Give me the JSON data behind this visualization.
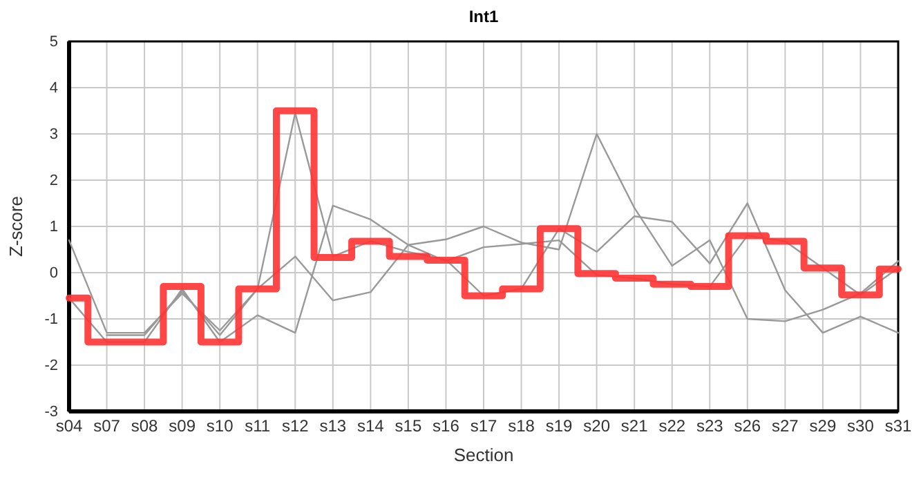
{
  "chart_data": {
    "type": "line",
    "title": "Int1",
    "xlabel": "Section",
    "ylabel": "Z-score",
    "categories": [
      "s04",
      "s07",
      "s08",
      "s09",
      "s10",
      "s11",
      "s12",
      "s13",
      "s14",
      "s15",
      "s16",
      "s17",
      "s18",
      "s19",
      "s20",
      "s21",
      "s22",
      "s23",
      "s26",
      "s27",
      "s29",
      "s30",
      "s31"
    ],
    "ylim": [
      -3,
      5
    ],
    "yticks": [
      -3,
      -2,
      -1,
      0,
      1,
      2,
      3,
      4,
      5
    ],
    "grid": true,
    "marker": "none",
    "line_style": "solid",
    "series": [
      {
        "color": "#999999",
        "values": [
          0.7,
          -1.3,
          -1.3,
          -0.45,
          -1.25,
          -0.35,
          3.45,
          0.35,
          0.68,
          0.45,
          0.28,
          -0.5,
          -0.35,
          0.95,
          0.45,
          1.22,
          1.1,
          0.2,
          1.5,
          -0.38,
          -1.3,
          -0.95,
          -1.3
        ]
      },
      {
        "color": "#999999",
        "values": [
          null,
          -1.35,
          -1.35,
          -0.4,
          -1.35,
          -0.35,
          0.35,
          -0.6,
          -0.42,
          0.6,
          0.72,
          1.0,
          0.65,
          0.5,
          3.0,
          1.4,
          0.15,
          0.7,
          -1.0,
          -1.05,
          -0.8,
          -0.45,
          0.25
        ]
      },
      {
        "color": "#999999",
        "values": [
          -0.55,
          -1.5,
          -1.5,
          -0.35,
          -1.5,
          -0.92,
          -1.3,
          1.45,
          1.15,
          0.6,
          0.25,
          0.55,
          0.62,
          0.7,
          -0.05,
          -0.12,
          -0.25,
          -0.3,
          0.8,
          0.68,
          0.1,
          -0.48,
          0.1
        ]
      },
      {
        "type": "step",
        "color": "#ff3333",
        "values": [
          -0.55,
          -1.5,
          -1.5,
          -0.3,
          -1.5,
          -0.35,
          3.5,
          0.33,
          0.68,
          0.35,
          0.27,
          -0.5,
          -0.35,
          0.95,
          -0.02,
          -0.12,
          -0.25,
          -0.3,
          0.8,
          0.68,
          0.1,
          -0.48,
          0.08
        ]
      }
    ]
  }
}
